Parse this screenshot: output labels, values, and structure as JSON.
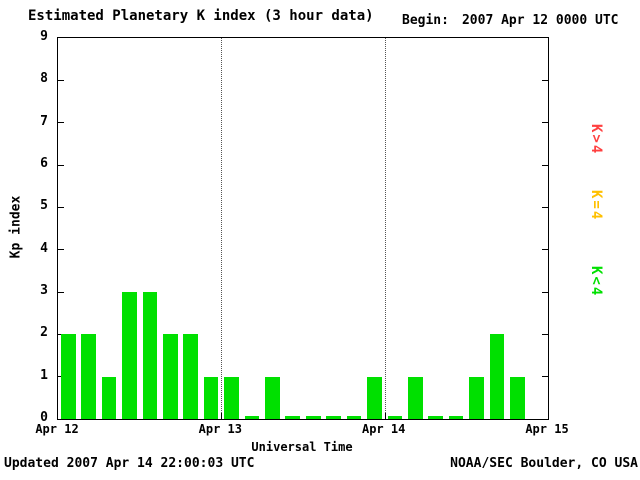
{
  "title": "Estimated Planetary K index (3 hour data)",
  "begin": {
    "label": "Begin:",
    "value": "2007 Apr 12 0000 UTC"
  },
  "axes": {
    "y_label": "Kp index",
    "x_label": "Universal Time"
  },
  "legend": [
    {
      "label": "K>4",
      "color": "#ff4040"
    },
    {
      "label": "K=4",
      "color": "#ffc000"
    },
    {
      "label": "K<4",
      "color": "#00e000"
    }
  ],
  "footer": {
    "updated": "Updated 2007 Apr 14 22:00:03 UTC",
    "source": "NOAA/SEC Boulder, CO USA"
  },
  "chart_data": {
    "type": "bar",
    "title": "Estimated Planetary K index (3 hour data)",
    "xlabel": "Universal Time",
    "ylabel": "Kp index",
    "ylim": [
      0,
      9
    ],
    "yticks": [
      0,
      1,
      2,
      3,
      4,
      5,
      6,
      7,
      8,
      9
    ],
    "xticks": [
      "Apr 12",
      "Apr 13",
      "Apr 14",
      "Apr 15"
    ],
    "days": 3,
    "slots_per_day": 8,
    "interval_hours": 3,
    "values": [
      2,
      2,
      1,
      3,
      3,
      2,
      2,
      1,
      1,
      0,
      1,
      0,
      0,
      0,
      0,
      1,
      0,
      1,
      0,
      0,
      1,
      2,
      1
    ],
    "colors": {
      "low": "#00e000",
      "mid": "#ffc000",
      "high": "#ff4040"
    },
    "grid_vlines_days": [
      1,
      2
    ],
    "grid": "vertical-dotted-day-boundaries",
    "legend_position": "right",
    "bar_color_rule": "green if K<4, yellow if K=4, red if K>4"
  }
}
